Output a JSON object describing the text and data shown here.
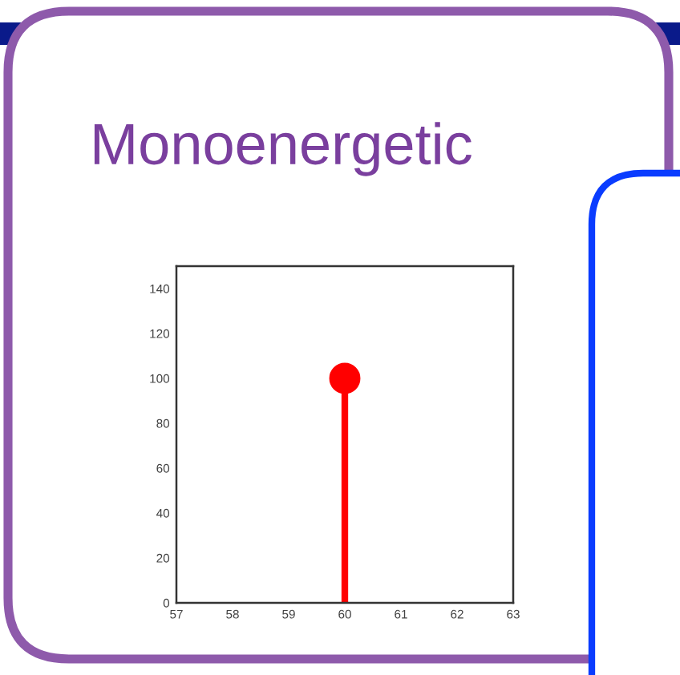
{
  "chart_data": {
    "type": "lollipop",
    "title": "Monoenergetic",
    "x": [
      60
    ],
    "values": [
      100
    ],
    "color": "#ff0000",
    "marker": "circle",
    "xlim": [
      57,
      63
    ],
    "xticks": [
      57,
      58,
      59,
      60,
      61,
      62,
      63
    ],
    "ylim": [
      0,
      150
    ],
    "yticks": [
      0,
      20,
      40,
      60,
      80,
      100,
      120,
      140
    ],
    "grid": false
  }
}
